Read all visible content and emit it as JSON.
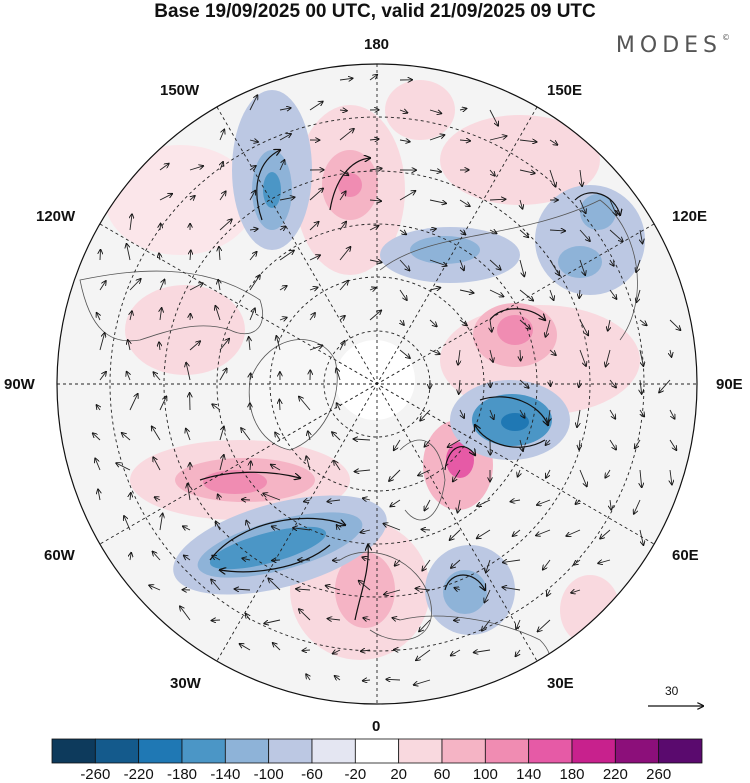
{
  "title": "Base 19/09/2025 00 UTC, valid 21/09/2025 09 UTC",
  "brand": "MODES",
  "brand_mark": "©",
  "lon_labels": {
    "top": "180",
    "bottom": "0",
    "left": "90W",
    "right": "90E",
    "nw150": "150W",
    "nw120": "120W",
    "sw60": "60W",
    "sw30": "30W",
    "ne150": "150E",
    "ne120": "120E",
    "se60": "60E",
    "se30": "30E"
  },
  "reference_vector": {
    "label": "30"
  },
  "colorbar": {
    "labels": [
      "-260",
      "-220",
      "-180",
      "-140",
      "-100",
      "-60",
      "-20",
      "20",
      "60",
      "100",
      "140",
      "180",
      "220",
      "260"
    ],
    "colors": [
      "#0d3a5c",
      "#145a8c",
      "#1f78b4",
      "#4b96c6",
      "#8eb3d8",
      "#bcc8e3",
      "#e4e6f2",
      "#ffffff",
      "#f9d9df",
      "#f5b4c5",
      "#f08cb2",
      "#e65aa6",
      "#c8218d",
      "#8c0f7a",
      "#5a0a6e"
    ]
  },
  "anomalies": [
    {
      "sign": "neg",
      "level": 3,
      "name": "neg-pacific-nw"
    },
    {
      "sign": "neg",
      "level": 2,
      "name": "neg-east-siberia"
    },
    {
      "sign": "neg",
      "level": 2,
      "name": "neg-siberia-north"
    },
    {
      "sign": "neg",
      "level": 4,
      "name": "neg-west-siberia"
    },
    {
      "sign": "neg",
      "level": 4,
      "name": "neg-north-atlantic"
    },
    {
      "sign": "neg",
      "level": 3,
      "name": "neg-eastern-europe"
    },
    {
      "sign": "pos",
      "level": 3,
      "name": "pos-north-pacific"
    },
    {
      "sign": "pos",
      "level": 3,
      "name": "pos-central-siberia"
    },
    {
      "sign": "pos",
      "level": 3,
      "name": "pos-scandinavia"
    },
    {
      "sign": "pos",
      "level": 3,
      "name": "pos-greenland-south"
    },
    {
      "sign": "pos",
      "level": 2,
      "name": "pos-western-europe"
    },
    {
      "sign": "pos",
      "level": 1,
      "name": "pos-alaska-pacific"
    },
    {
      "sign": "pos",
      "level": 1,
      "name": "pos-canada"
    },
    {
      "sign": "pos",
      "level": 1,
      "name": "pos-far-east"
    },
    {
      "sign": "pos",
      "level": 1,
      "name": "pos-africa"
    }
  ]
}
